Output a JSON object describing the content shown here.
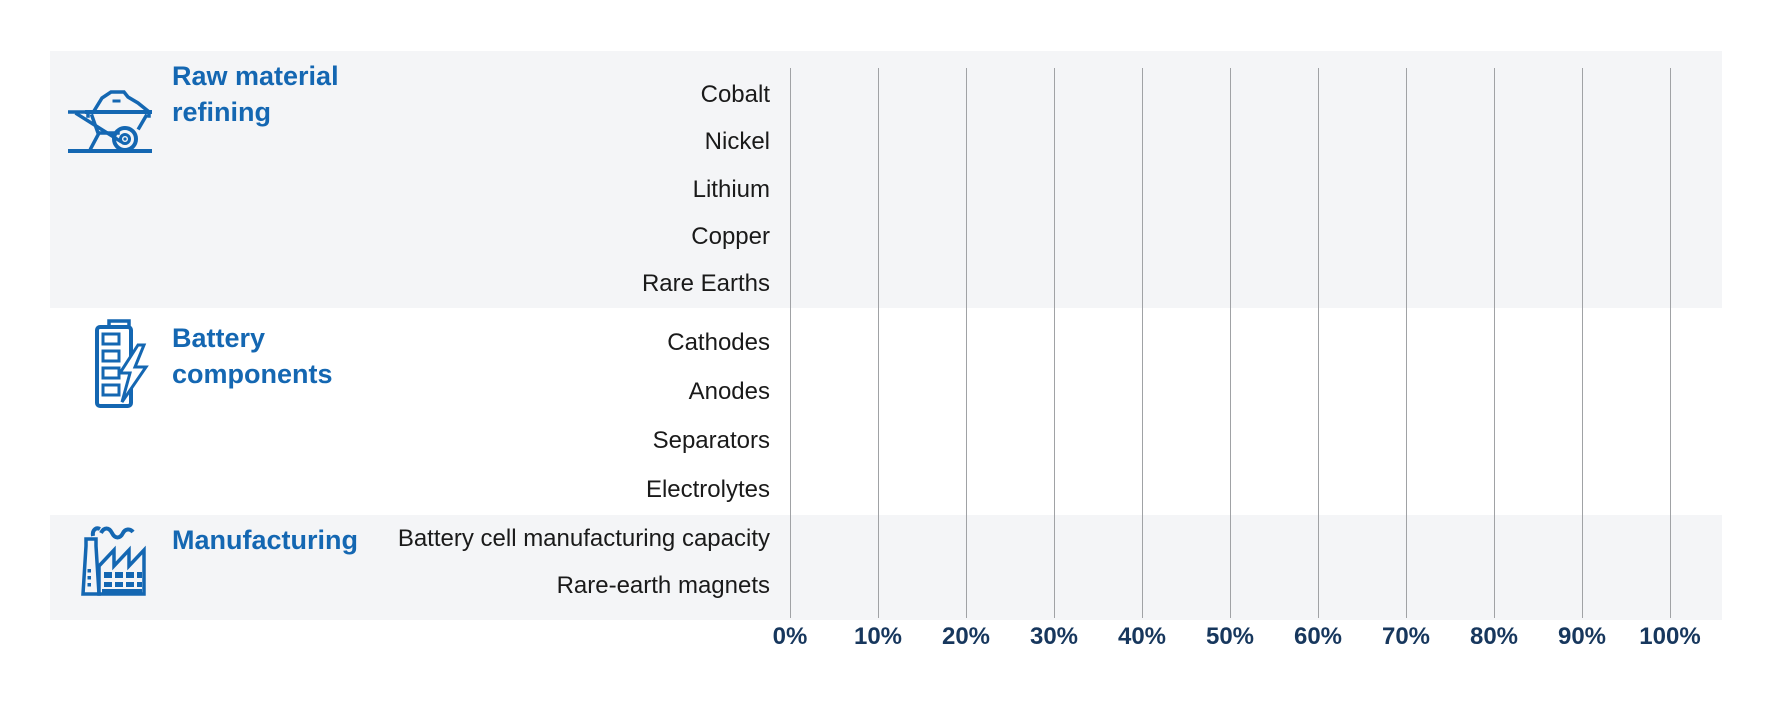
{
  "chart_data": {
    "type": "bar",
    "orientation": "horizontal",
    "title": "",
    "x_axis": {
      "tick_labels": [
        "0%",
        "10%",
        "20%",
        "30%",
        "40%",
        "50%",
        "60%",
        "70%",
        "80%",
        "90%",
        "100%"
      ],
      "range": [
        0,
        100
      ],
      "unit": "%",
      "gridlines": true
    },
    "sections": [
      {
        "label": "Raw material refining",
        "icon": "wheelbarrow-icon",
        "rows": [
          "Cobalt",
          "Nickel",
          "Lithium",
          "Copper",
          "Rare Earths"
        ]
      },
      {
        "label": "Battery components",
        "icon": "battery-icon",
        "rows": [
          "Cathodes",
          "Anodes",
          "Separators",
          "Electrolytes"
        ]
      },
      {
        "label": "Manufacturing",
        "icon": "factory-icon",
        "rows": [
          "Battery cell manufacturing capacity",
          "Rare-earth magnets"
        ]
      }
    ],
    "series": [],
    "legend": null
  },
  "colors": {
    "category_blue": "#1467b2",
    "axis_navy": "#17375d",
    "row_text": "#1a1a1a",
    "band_gray": "#f4f5f7",
    "gridline_gray": "#a0a2a5",
    "background": "#ffffff"
  }
}
